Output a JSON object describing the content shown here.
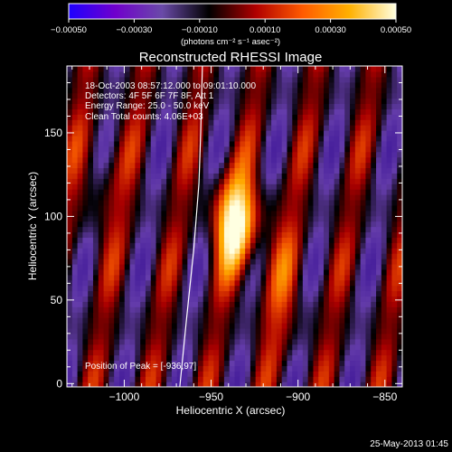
{
  "chart_data": {
    "type": "heatmap",
    "title": "Reconstructed RHESSI Image",
    "xlabel": "Heliocentric X (arcsec)",
    "ylabel": "Heliocentric Y (arcsec)",
    "xlim": [
      -1033,
      -840
    ],
    "ylim": [
      -2,
      190
    ],
    "x_ticks": [
      -1000,
      -950,
      -900,
      -850
    ],
    "x_tick_labels": [
      "−1000",
      "−950",
      "−900",
      "−850"
    ],
    "y_ticks": [
      0,
      50,
      100,
      150
    ],
    "y_tick_labels": [
      "0",
      "50",
      "100",
      "150"
    ],
    "colorbar": {
      "range": [
        -0.0005,
        0.0005
      ],
      "ticks": [
        -0.0005,
        -0.0003,
        -0.0001,
        0.0001,
        0.0003,
        0.0005
      ],
      "tick_labels": [
        "−0.00050",
        "−0.00030",
        "−0.00010",
        "0.00010",
        "0.00030",
        "0.00050"
      ],
      "unit_label": "(photons cm⁻² s⁻¹ asec⁻²)",
      "colors": [
        "#1e00ff",
        "#7000cc",
        "#6a4aa8",
        "#000000",
        "#b00000",
        "#ff5a00",
        "#ffb000",
        "#ffffe0"
      ]
    },
    "annotations": [
      "18-Oct-2003 08:57:12.000 to 09:01:10.000",
      "Detectors: 4F 5F 6F 7F 8F, Att 1",
      "Energy Range: 25.0 - 50.0 keV",
      "Clean    Total counts: 4.06E+03"
    ],
    "peak_label": "Position of Peak = [-936,97]",
    "peak": [
      -936,
      97
    ],
    "limb_curve": [
      [
        -968,
        -2
      ],
      [
        -964,
        40
      ],
      [
        -960,
        80
      ],
      [
        -957,
        120
      ],
      [
        -956,
        150
      ],
      [
        -955,
        190
      ]
    ]
  },
  "footer": {
    "timestamp": "25-May-2013 01:45"
  }
}
